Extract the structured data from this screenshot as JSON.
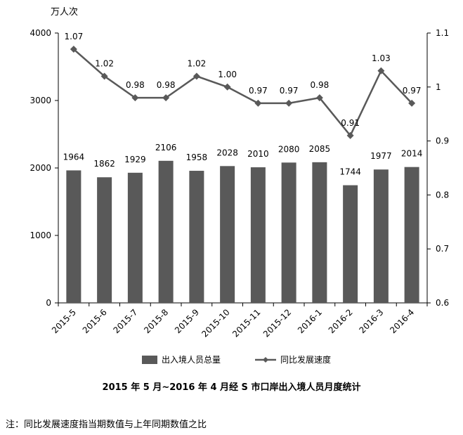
{
  "chart_data": {
    "type": "bar",
    "title": "2015 年 5 月~2016 年 4 月经 S 市口岸出入境人员月度统计",
    "ylabel": "万人次",
    "categories": [
      "2015-5",
      "2015-6",
      "2015-7",
      "2015-8",
      "2015-9",
      "2015-10",
      "2015-11",
      "2015-12",
      "2016-1",
      "2016-2",
      "2016-3",
      "2016-4"
    ],
    "ylim": [
      0,
      4000
    ],
    "y_ticks": [
      "0",
      "1000",
      "2000",
      "3000",
      "4000"
    ],
    "y2lim": [
      0.6,
      1.1
    ],
    "y2_ticks": [
      "0.6",
      "0.7",
      "0.8",
      "0.9",
      "1",
      "1.1"
    ],
    "series": [
      {
        "name": "出入境人员总量",
        "kind": "bar",
        "axis": "left",
        "color": "#595959",
        "values": [
          1964,
          1862,
          1929,
          2106,
          1958,
          2028,
          2010,
          2080,
          2085,
          1744,
          1977,
          2014
        ],
        "labels": [
          "1964",
          "1862",
          "1929",
          "2106",
          "1958",
          "2028",
          "2010",
          "2080",
          "2085",
          "1744",
          "1977",
          "2014"
        ]
      },
      {
        "name": "同比发展速度",
        "kind": "line",
        "axis": "right",
        "color": "#595959",
        "values": [
          1.07,
          1.02,
          0.98,
          0.98,
          1.02,
          1.0,
          0.97,
          0.97,
          0.98,
          0.91,
          1.03,
          0.97
        ],
        "labels": [
          "1.07",
          "1.02",
          "0.98",
          "0.98",
          "1.02",
          "1.00",
          "0.97",
          "0.97",
          "0.98",
          "0.91",
          "1.03",
          "0.97"
        ]
      }
    ],
    "legend": "bottom",
    "grid": false
  },
  "note": "注：同比发展速度指当期数值与上年同期数值之比"
}
